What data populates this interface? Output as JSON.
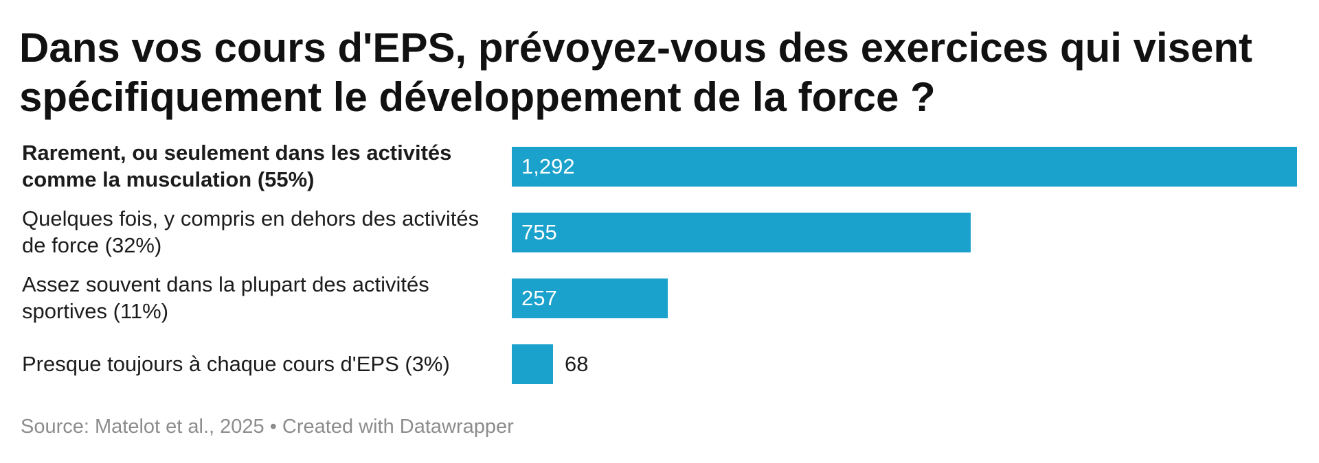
{
  "chart_data": {
    "type": "bar",
    "orientation": "horizontal",
    "title": "Dans vos cours d'EPS, prévoyez-vous des exercices qui visent spécifiquement le développement de la force ?",
    "categories": [
      "Rarement, ou seulement dans les activités comme la musculation (55%)",
      "Quelques fois, y compris en dehors des activités de force (32%)",
      "Assez souvent dans la plupart des activités sportives (11%)",
      "Presque toujours à chaque cours d'EPS (3%)"
    ],
    "values": [
      1292,
      755,
      257,
      68
    ],
    "value_labels": [
      "1,292",
      "755",
      "257",
      "68"
    ],
    "xlim": [
      0,
      1292
    ],
    "bar_color": "#1aa1cc",
    "highlighted_category_index": 0,
    "footer": "Source: Matelot et al., 2025 • Created with Datawrapper"
  }
}
